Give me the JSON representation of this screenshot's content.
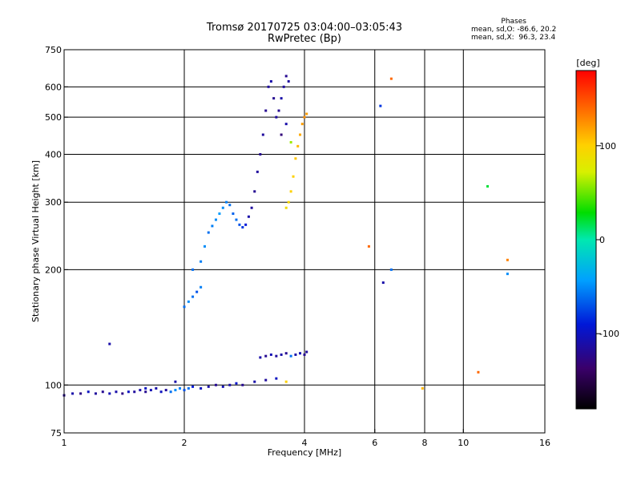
{
  "title": "Tromsø 20170725 03:04:00–03:05:43",
  "subtitle": "RwPretec (Bp)",
  "stats": {
    "header": "Phases",
    "line_o": "mean, sd,O: -86.6, 20.2",
    "line_x": "mean, sd,X:  96.3, 23.4"
  },
  "colorbar": {
    "label": "[deg]",
    "ticks": [
      {
        "value": 100,
        "label": "100"
      },
      {
        "value": 0,
        "label": "0"
      },
      {
        "value": -100,
        "label": "-100"
      }
    ],
    "min": -180,
    "max": 180
  },
  "chart_data": {
    "type": "scatter",
    "xlabel": "Frequency [MHz]",
    "ylabel": "Stationary phase Virtual Height [km]",
    "xscale": "log",
    "yscale": "log",
    "xlim": [
      1,
      16
    ],
    "ylim": [
      75,
      750
    ],
    "x_ticks": [
      1,
      2,
      4,
      6,
      8,
      10,
      16
    ],
    "x_tick_labels": [
      "1",
      "2",
      "4",
      "6",
      "8",
      "10",
      "16"
    ],
    "y_ticks": [
      75,
      100,
      200,
      300,
      400,
      500,
      600,
      750
    ],
    "y_tick_labels": [
      "75",
      "100",
      "200",
      "300",
      "400",
      "500",
      "600",
      "750"
    ],
    "x_grid": [
      2,
      4,
      6,
      8,
      10
    ],
    "y_grid": [
      100,
      200,
      300,
      400,
      500,
      600
    ],
    "grid": true,
    "series": [
      {
        "color_by": "phase_deg",
        "points": [
          [
            1.0,
            94,
            -120
          ],
          [
            1.05,
            95,
            -110
          ],
          [
            1.1,
            95,
            -125
          ],
          [
            1.15,
            96,
            -100
          ],
          [
            1.2,
            95,
            -115
          ],
          [
            1.25,
            96,
            -120
          ],
          [
            1.3,
            95,
            -105
          ],
          [
            1.35,
            96,
            -110
          ],
          [
            1.4,
            95,
            -125
          ],
          [
            1.45,
            96,
            -100
          ],
          [
            1.5,
            96,
            -115
          ],
          [
            1.55,
            97,
            -110
          ],
          [
            1.6,
            96,
            -120
          ],
          [
            1.65,
            97,
            -105
          ],
          [
            1.7,
            98,
            -110
          ],
          [
            1.75,
            96,
            -100
          ],
          [
            1.8,
            97,
            -115
          ],
          [
            1.85,
            96,
            -60
          ],
          [
            1.9,
            97,
            -50
          ],
          [
            1.95,
            98,
            -55
          ],
          [
            2.0,
            97,
            -70
          ],
          [
            2.05,
            98,
            -60
          ],
          [
            2.1,
            99,
            -90
          ],
          [
            2.2,
            98,
            -100
          ],
          [
            2.3,
            99,
            -110
          ],
          [
            2.4,
            100,
            -120
          ],
          [
            2.5,
            99,
            -105
          ],
          [
            2.6,
            100,
            -110
          ],
          [
            2.7,
            101,
            -95
          ],
          [
            2.8,
            100,
            -120
          ],
          [
            3.0,
            102,
            -110
          ],
          [
            3.2,
            103,
            -115
          ],
          [
            3.4,
            104,
            -100
          ],
          [
            3.6,
            102,
            100
          ],
          [
            1.3,
            128,
            -110
          ],
          [
            1.6,
            98,
            -100
          ],
          [
            1.9,
            102,
            -110
          ],
          [
            3.1,
            118,
            -110
          ],
          [
            3.2,
            119,
            -120
          ],
          [
            3.3,
            120,
            -105
          ],
          [
            3.4,
            119,
            -115
          ],
          [
            3.5,
            120,
            -110
          ],
          [
            3.6,
            121,
            -120
          ],
          [
            3.7,
            119,
            -60
          ],
          [
            3.8,
            120,
            -110
          ],
          [
            3.9,
            121,
            -105
          ],
          [
            4.0,
            120,
            -120
          ],
          [
            4.05,
            122,
            -115
          ],
          [
            2.0,
            160,
            -60
          ],
          [
            2.05,
            165,
            -50
          ],
          [
            2.1,
            170,
            -60
          ],
          [
            2.15,
            175,
            -70
          ],
          [
            2.2,
            180,
            -55
          ],
          [
            2.1,
            200,
            -60
          ],
          [
            2.2,
            210,
            -55
          ],
          [
            2.25,
            230,
            -50
          ],
          [
            2.3,
            250,
            -60
          ],
          [
            2.35,
            260,
            -55
          ],
          [
            2.4,
            270,
            -50
          ],
          [
            2.45,
            280,
            -45
          ],
          [
            2.5,
            290,
            -50
          ],
          [
            2.55,
            300,
            -55
          ],
          [
            2.6,
            295,
            -60
          ],
          [
            2.65,
            280,
            -65
          ],
          [
            2.7,
            270,
            -60
          ],
          [
            2.75,
            262,
            -70
          ],
          [
            2.8,
            258,
            -80
          ],
          [
            2.85,
            262,
            -90
          ],
          [
            2.9,
            275,
            -110
          ],
          [
            2.95,
            290,
            -115
          ],
          [
            3.0,
            320,
            -120
          ],
          [
            3.05,
            360,
            -115
          ],
          [
            3.1,
            400,
            -120
          ],
          [
            3.15,
            450,
            -115
          ],
          [
            3.2,
            520,
            -120
          ],
          [
            3.25,
            600,
            -115
          ],
          [
            3.3,
            620,
            -110
          ],
          [
            3.35,
            560,
            -120
          ],
          [
            3.4,
            500,
            -115
          ],
          [
            3.45,
            520,
            -120
          ],
          [
            3.5,
            560,
            -110
          ],
          [
            3.55,
            600,
            -115
          ],
          [
            3.6,
            640,
            -120
          ],
          [
            3.5,
            450,
            -130
          ],
          [
            3.6,
            480,
            -110
          ],
          [
            3.65,
            620,
            -115
          ],
          [
            3.7,
            430,
            60
          ],
          [
            3.6,
            290,
            90
          ],
          [
            3.65,
            300,
            95
          ],
          [
            3.7,
            320,
            100
          ],
          [
            3.75,
            350,
            100
          ],
          [
            3.8,
            390,
            105
          ],
          [
            3.85,
            420,
            110
          ],
          [
            3.9,
            450,
            115
          ],
          [
            3.95,
            480,
            120
          ],
          [
            4.0,
            500,
            125
          ],
          [
            4.05,
            510,
            120
          ],
          [
            6.2,
            535,
            -80
          ],
          [
            6.6,
            630,
            140
          ],
          [
            5.8,
            230,
            140
          ],
          [
            6.3,
            185,
            -110
          ],
          [
            6.6,
            200,
            -60
          ],
          [
            7.9,
            98,
            110
          ],
          [
            10.9,
            108,
            140
          ],
          [
            11.5,
            330,
            20
          ],
          [
            12.9,
            195,
            -50
          ],
          [
            12.9,
            212,
            130
          ]
        ]
      }
    ]
  }
}
